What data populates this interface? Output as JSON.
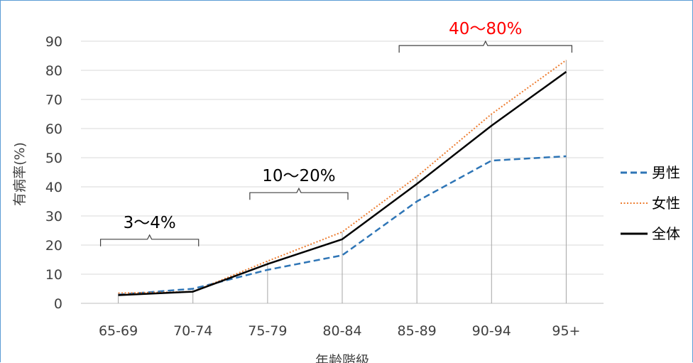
{
  "chart_data": {
    "type": "line",
    "categories": [
      "65-69",
      "70-74",
      "75-79",
      "80-84",
      "85-89",
      "90-94",
      "95+"
    ],
    "series": [
      {
        "name": "男性",
        "values": [
          3,
          5,
          11.5,
          16.5,
          35,
          49,
          50.5
        ],
        "color": "#2e75b6",
        "style": "dashed"
      },
      {
        "name": "女性",
        "values": [
          3.5,
          4,
          14.5,
          24.5,
          43.5,
          65,
          83.5
        ],
        "color": "#ed7d31",
        "style": "dotted"
      },
      {
        "name": "全体",
        "values": [
          2.8,
          4,
          13.5,
          22,
          41,
          61,
          79.5
        ],
        "color": "#000000",
        "style": "solid"
      }
    ],
    "xlabel": "年齢階級",
    "ylabel": "有病率(%)",
    "ylim": [
      0,
      90
    ],
    "yticks": [
      0,
      10,
      20,
      30,
      40,
      50,
      60,
      70,
      80,
      90
    ],
    "grid": true,
    "legend_position": "right",
    "annotations": [
      {
        "text": "3～4%",
        "from": "65-69",
        "to": "70-74",
        "color": "#000000"
      },
      {
        "text": "10～20%",
        "from": "75-79",
        "to": "80-84",
        "color": "#000000"
      },
      {
        "text": "40～80%",
        "from": "85-89",
        "to": "95+",
        "color": "#ff0000"
      }
    ]
  }
}
